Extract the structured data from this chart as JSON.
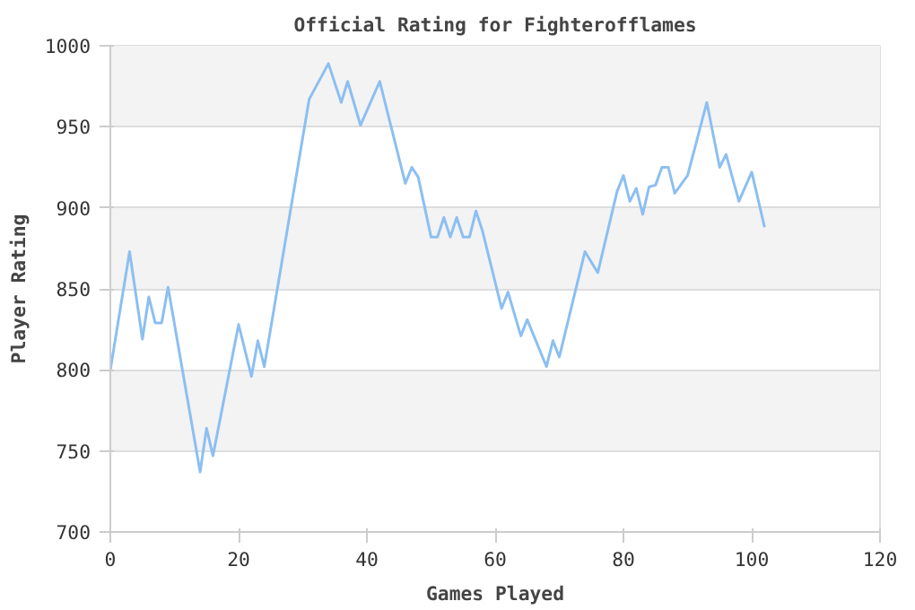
{
  "chart_data": {
    "type": "line",
    "title": "Official Rating for Fighterofflames",
    "xlabel": "Games Played",
    "ylabel": "Player Rating",
    "x": [
      0,
      3,
      5,
      6,
      7,
      8,
      9,
      14,
      15,
      16,
      20,
      22,
      23,
      24,
      31,
      34,
      36,
      37,
      39,
      42,
      46,
      47,
      48,
      50,
      51,
      52,
      53,
      54,
      55,
      56,
      57,
      58,
      61,
      62,
      64,
      65,
      68,
      69,
      70,
      74,
      76,
      79,
      80,
      81,
      82,
      83,
      84,
      85,
      86,
      87,
      88,
      90,
      93,
      95,
      96,
      98,
      100,
      102
    ],
    "series": [
      {
        "color": "#8cbff2",
        "values": [
          800,
          873,
          819,
          845,
          829,
          829,
          851,
          737,
          764,
          747,
          828,
          796,
          818,
          802,
          967,
          989,
          965,
          978,
          951,
          978,
          915,
          925,
          919,
          882,
          882,
          894,
          882,
          894,
          882,
          882,
          898,
          886,
          838,
          848,
          821,
          831,
          802,
          818,
          808,
          873,
          860,
          910,
          920,
          904,
          912,
          896,
          913,
          914,
          925,
          925,
          909,
          920,
          965,
          925,
          933,
          904,
          922,
          888
        ]
      }
    ],
    "xlim": [
      0,
      120
    ],
    "xticks": [
      0,
      20,
      40,
      60,
      80,
      100,
      120
    ],
    "ylim": [
      700,
      1000
    ],
    "yticks": [
      700,
      750,
      800,
      850,
      900,
      950,
      1000
    ],
    "grid": "y",
    "marker": "none",
    "line_style": "solid"
  }
}
